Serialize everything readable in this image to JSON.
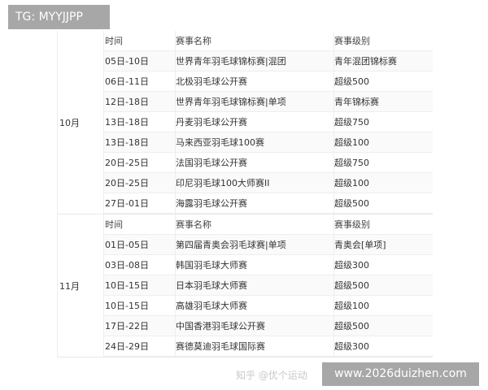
{
  "overlay_tag": "TG: MYYJJPP",
  "overlay_site": "www.2026duizhen.com",
  "watermark": "知乎 @优个运动",
  "months": [
    {
      "label": "10月",
      "header": {
        "time": "时间",
        "name": "赛事名称",
        "level": "赛事级别"
      },
      "rows": [
        {
          "time": "05日-10日",
          "name": "世界青年羽毛球锦标赛|混团",
          "level": "青年混团锦标赛"
        },
        {
          "time": "06日-11日",
          "name": "北极羽毛球公开赛",
          "level": "超级500"
        },
        {
          "time": "12日-18日",
          "name": "世界青年羽毛球锦标赛|单项",
          "level": "青年锦标赛"
        },
        {
          "time": "13日-18日",
          "name": "丹麦羽毛球公开赛",
          "level": "超级750"
        },
        {
          "time": "13日-18日",
          "name": "马来西亚羽毛球100赛",
          "level": "超级100"
        },
        {
          "time": "20日-25日",
          "name": "法国羽毛球公开赛",
          "level": "超级750"
        },
        {
          "time": "20日-25日",
          "name": "印尼羽毛球100大师赛II",
          "level": "超级100"
        },
        {
          "time": "27日-01日",
          "name": "海露羽毛球公开赛",
          "level": "超级500"
        }
      ]
    },
    {
      "label": "11月",
      "header": {
        "time": "时间",
        "name": "赛事名称",
        "level": "赛事级别"
      },
      "rows": [
        {
          "time": "01日-05日",
          "name": "第四届青奥会羽毛球赛|单项",
          "level": "青奥会[单项]"
        },
        {
          "time": "03日-08日",
          "name": "韩国羽毛球大师赛",
          "level": "超级300"
        },
        {
          "time": "10日-15日",
          "name": "日本羽毛球大师赛",
          "level": "超级500"
        },
        {
          "time": "10日-15日",
          "name": "高雄羽毛球大师赛",
          "level": "超级100"
        },
        {
          "time": "17日-22日",
          "name": "中国香港羽毛球公开赛",
          "level": "超级500"
        },
        {
          "time": "24日-29日",
          "name": "赛德莫迪羽毛球国际赛",
          "level": "超级300"
        }
      ]
    }
  ]
}
